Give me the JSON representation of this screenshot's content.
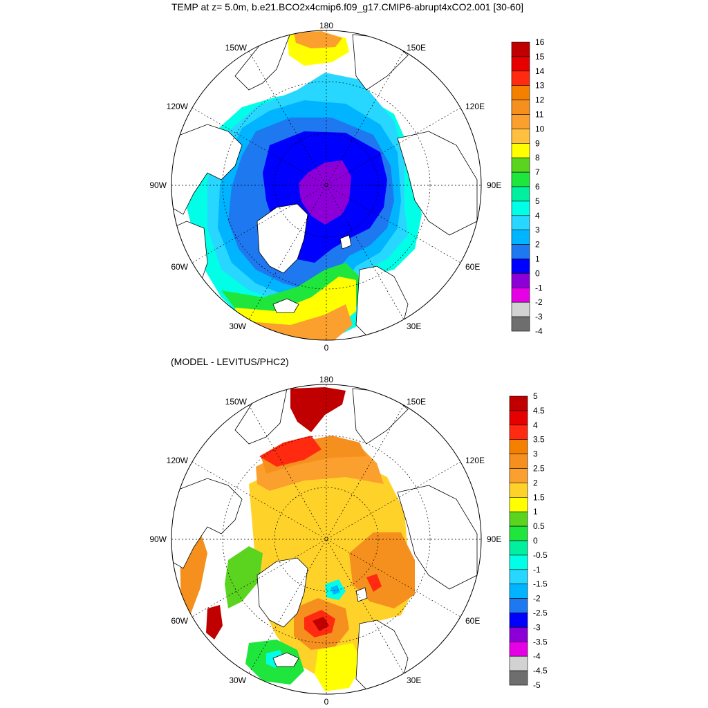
{
  "top": {
    "title": "TEMP at z=   5.0m, b.e21.BCO2x4cmip6.f09_g17.CMIP6-abrupt4xCO2.001 [30-60]",
    "lon_labels": {
      "n": "180",
      "nw": "150W",
      "ne": "150E",
      "wnw": "120W",
      "ene": "120E",
      "w": "90W",
      "e": "90E",
      "wsw": "60W",
      "ese": "60E",
      "sw": "30W",
      "se": "30E",
      "s": "0"
    },
    "colorbar": {
      "labels": [
        "16",
        "15",
        "14",
        "13",
        "12",
        "11",
        "10",
        "9",
        "8",
        "7",
        "6",
        "5",
        "4",
        "3",
        "2",
        "1",
        "0",
        "-1",
        "-2",
        "-3",
        "-4"
      ],
      "colors": [
        "#c00000",
        "#e60000",
        "#ff2a10",
        "#f58000",
        "#f5901e",
        "#fba02e",
        "#ffc040",
        "#ffff00",
        "#5ad41e",
        "#1ee63c",
        "#00f0a0",
        "#00ffe6",
        "#28d7ff",
        "#00b4ff",
        "#1e78f0",
        "#0000ff",
        "#8c00d7",
        "#e600e6",
        "#d2d2d2",
        "#6e6e6e"
      ]
    }
  },
  "bottom": {
    "title": "(MODEL - LEVITUS/PHC2)",
    "lon_labels": {
      "n": "180",
      "nw": "150W",
      "ne": "150E",
      "wnw": "120W",
      "ene": "120E",
      "w": "90W",
      "e": "90E",
      "wsw": "60W",
      "ese": "60E",
      "sw": "30W",
      "se": "30E",
      "s": "0"
    },
    "colorbar": {
      "labels": [
        "5",
        "4.5",
        "4",
        "3.5",
        "3",
        "2.5",
        "2",
        "1.5",
        "1",
        "0.5",
        "0",
        "-0.5",
        "-1",
        "-1.5",
        "-2",
        "-2.5",
        "-3",
        "-3.5",
        "-4",
        "-4.5",
        "-5"
      ],
      "colors": [
        "#c00000",
        "#e60000",
        "#ff2a10",
        "#f58000",
        "#f5901e",
        "#fba02e",
        "#ffd22a",
        "#ffff00",
        "#5ad41e",
        "#1ee63c",
        "#00f0a0",
        "#00ffe6",
        "#28d7ff",
        "#00b4ff",
        "#1e78f0",
        "#0000ff",
        "#8c00d7",
        "#e600e6",
        "#d2d2d2",
        "#6e6e6e"
      ]
    }
  }
}
